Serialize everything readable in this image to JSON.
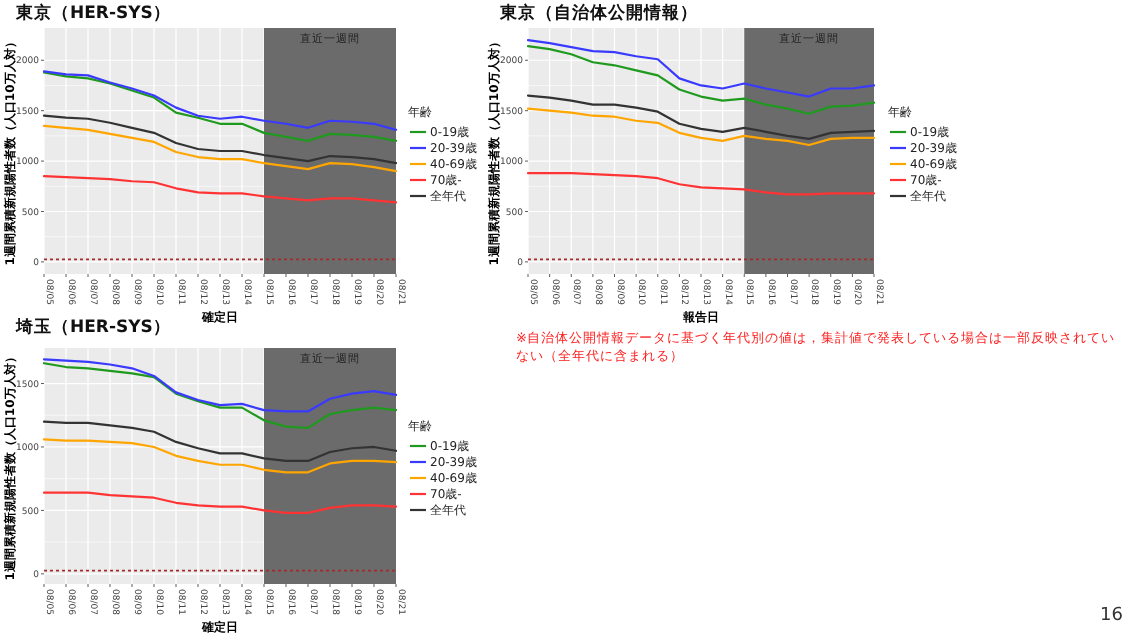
{
  "chart_data": [
    {
      "type": "line",
      "title": "東京（HER-SYS）",
      "xlabel": "確定日",
      "ylabel": "1週間累積新規陽性者数（人口10万人対）",
      "legend_title": "年齢",
      "legend": "right",
      "grid": true,
      "categories": [
        "08/05",
        "08/06",
        "08/07",
        "08/08",
        "08/09",
        "08/10",
        "08/11",
        "08/12",
        "08/13",
        "08/14",
        "08/15",
        "08/16",
        "08/17",
        "08/18",
        "08/19",
        "08/20",
        "08/21"
      ],
      "ylim": [
        -120,
        2320
      ],
      "yticks": [
        0,
        500,
        1000,
        1500,
        2000
      ],
      "bands": [
        {
          "axis": "x",
          "from": "08/15",
          "to": "08/21",
          "label": "直近一週間",
          "color": "#6b6b6b"
        }
      ],
      "ref_lines": [
        {
          "axis": "y",
          "value": 25,
          "color": "#a52a2a",
          "line_style": "dotted"
        }
      ],
      "series": [
        {
          "name": "0-19歳",
          "color": "#1f9a1f",
          "values": [
            1880,
            1840,
            1820,
            1770,
            1700,
            1630,
            1480,
            1430,
            1370,
            1370,
            1280,
            1240,
            1200,
            1270,
            1260,
            1240,
            1200
          ]
        },
        {
          "name": "20-39歳",
          "color": "#3a3aff",
          "values": [
            1890,
            1860,
            1850,
            1780,
            1720,
            1650,
            1530,
            1450,
            1420,
            1440,
            1400,
            1370,
            1330,
            1400,
            1390,
            1370,
            1310
          ]
        },
        {
          "name": "40-69歳",
          "color": "#ffa500",
          "values": [
            1350,
            1330,
            1310,
            1270,
            1230,
            1190,
            1090,
            1040,
            1020,
            1020,
            980,
            950,
            920,
            980,
            970,
            940,
            900
          ]
        },
        {
          "name": "70歳-",
          "color": "#ff3333",
          "values": [
            850,
            840,
            830,
            820,
            800,
            790,
            730,
            690,
            680,
            680,
            650,
            630,
            610,
            630,
            630,
            610,
            590
          ]
        },
        {
          "name": "全年代",
          "color": "#333333",
          "values": [
            1450,
            1430,
            1420,
            1380,
            1330,
            1280,
            1180,
            1120,
            1100,
            1100,
            1060,
            1030,
            1000,
            1050,
            1040,
            1020,
            980
          ]
        }
      ]
    },
    {
      "type": "line",
      "title": "東京（自治体公開情報）",
      "xlabel": "報告日",
      "ylabel": "1週間累積新規陽性者数（人口10万人対）",
      "legend_title": "年齢",
      "legend": "right",
      "grid": true,
      "categories": [
        "08/05",
        "08/06",
        "08/07",
        "08/08",
        "08/09",
        "08/10",
        "08/11",
        "08/12",
        "08/13",
        "08/14",
        "08/15",
        "08/16",
        "08/17",
        "08/18",
        "08/19",
        "08/20",
        "08/21"
      ],
      "ylim": [
        -120,
        2320
      ],
      "yticks": [
        0,
        500,
        1000,
        1500,
        2000
      ],
      "bands": [
        {
          "axis": "x",
          "from": "08/15",
          "to": "08/21",
          "label": "直近一週間",
          "color": "#6b6b6b"
        }
      ],
      "ref_lines": [
        {
          "axis": "y",
          "value": 25,
          "color": "#a52a2a",
          "line_style": "dotted"
        }
      ],
      "annotations": [
        "※自治体公開情報データに基づく年代別の値は，集計値で発表している場合は一部反映されていない（全年代に含まれる）",
        "16"
      ],
      "series": [
        {
          "name": "0-19歳",
          "color": "#1f9a1f",
          "values": [
            2140,
            2110,
            2060,
            1980,
            1950,
            1900,
            1850,
            1710,
            1640,
            1600,
            1620,
            1560,
            1520,
            1470,
            1540,
            1550,
            1580
          ]
        },
        {
          "name": "20-39歳",
          "color": "#3a3aff",
          "values": [
            2200,
            2170,
            2130,
            2090,
            2080,
            2040,
            2010,
            1820,
            1750,
            1720,
            1770,
            1720,
            1680,
            1640,
            1720,
            1720,
            1750
          ]
        },
        {
          "name": "40-69歳",
          "color": "#ffa500",
          "values": [
            1520,
            1500,
            1480,
            1450,
            1440,
            1400,
            1380,
            1280,
            1230,
            1200,
            1250,
            1220,
            1200,
            1160,
            1220,
            1230,
            1230
          ]
        },
        {
          "name": "70歳-",
          "color": "#ff3333",
          "values": [
            880,
            880,
            880,
            870,
            860,
            850,
            830,
            770,
            740,
            730,
            720,
            690,
            670,
            670,
            680,
            680,
            680
          ]
        },
        {
          "name": "全年代",
          "color": "#333333",
          "values": [
            1650,
            1630,
            1600,
            1560,
            1560,
            1530,
            1490,
            1370,
            1320,
            1290,
            1330,
            1290,
            1250,
            1220,
            1280,
            1290,
            1300
          ]
        }
      ]
    },
    {
      "type": "line",
      "title": "埼玉（HER-SYS）",
      "xlabel": "確定日",
      "ylabel": "1週間累積新規陽性者数（人口10万人対）",
      "legend_title": "年齢",
      "legend": "right",
      "grid": true,
      "categories": [
        "08/05",
        "08/06",
        "08/07",
        "08/08",
        "08/09",
        "08/10",
        "08/11",
        "08/12",
        "08/13",
        "08/14",
        "08/15",
        "08/16",
        "08/17",
        "08/18",
        "08/19",
        "08/20",
        "08/21"
      ],
      "ylim": [
        -80,
        1780
      ],
      "yticks": [
        0,
        500,
        1000,
        1500
      ],
      "bands": [
        {
          "axis": "x",
          "from": "08/15",
          "to": "08/21",
          "label": "直近一週間",
          "color": "#6b6b6b"
        }
      ],
      "ref_lines": [
        {
          "axis": "y",
          "value": 25,
          "color": "#a52a2a",
          "line_style": "dotted"
        }
      ],
      "series": [
        {
          "name": "0-19歳",
          "color": "#1f9a1f",
          "values": [
            1660,
            1630,
            1620,
            1600,
            1580,
            1550,
            1420,
            1360,
            1310,
            1310,
            1210,
            1160,
            1150,
            1260,
            1290,
            1310,
            1290
          ]
        },
        {
          "name": "20-39歳",
          "color": "#3a3aff",
          "values": [
            1690,
            1680,
            1670,
            1650,
            1620,
            1560,
            1430,
            1370,
            1330,
            1340,
            1290,
            1280,
            1280,
            1380,
            1420,
            1440,
            1410
          ]
        },
        {
          "name": "40-69歳",
          "color": "#ffa500",
          "values": [
            1060,
            1050,
            1050,
            1040,
            1030,
            1000,
            930,
            890,
            860,
            860,
            820,
            800,
            800,
            870,
            890,
            890,
            880
          ]
        },
        {
          "name": "70歳-",
          "color": "#ff3333",
          "values": [
            640,
            640,
            640,
            620,
            610,
            600,
            560,
            540,
            530,
            530,
            500,
            480,
            480,
            520,
            540,
            540,
            530
          ]
        },
        {
          "name": "全年代",
          "color": "#333333",
          "values": [
            1200,
            1190,
            1190,
            1170,
            1150,
            1120,
            1040,
            990,
            950,
            950,
            910,
            890,
            890,
            960,
            990,
            1000,
            970
          ]
        }
      ]
    }
  ]
}
